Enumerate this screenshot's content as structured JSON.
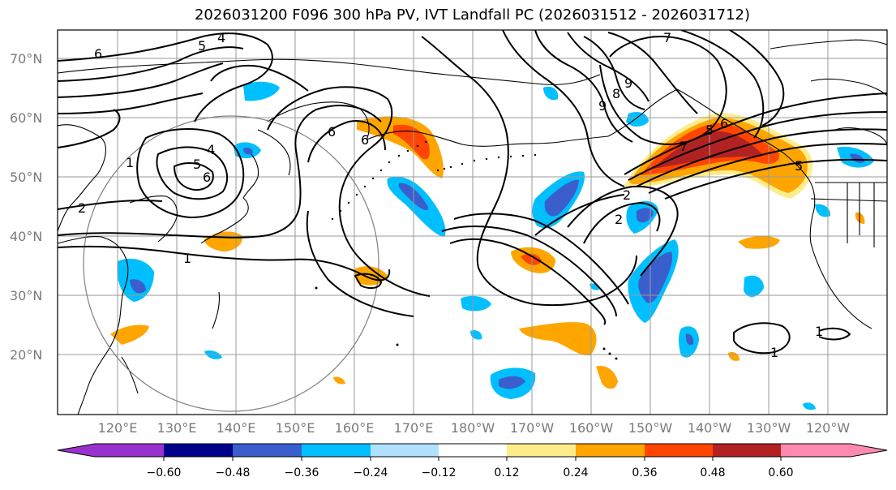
{
  "title": "2026031200 F096 300 hPa PV, IVT Landfall PC (2026031512 - 2026031712)",
  "map": {
    "lat_labels": [
      "70°N",
      "60°N",
      "50°N",
      "40°N",
      "30°N",
      "20°N"
    ],
    "lon_labels": [
      "120°E",
      "130°E",
      "140°E",
      "150°E",
      "160°E",
      "170°E",
      "180°W",
      "170°W",
      "160°W",
      "150°W",
      "140°W",
      "130°W",
      "120°W"
    ],
    "contour_labels": [
      "6",
      "5",
      "4",
      "5",
      "6",
      "7",
      "9",
      "8",
      "9",
      "6",
      "7",
      "6",
      "1",
      "1",
      "2",
      "2",
      "2",
      "1",
      "1",
      "4",
      "5",
      "6",
      "5"
    ],
    "colors": {
      "coastline": "#000000",
      "gridline": "#9a9a9a",
      "circle": "#808080",
      "contour": "#000000"
    }
  },
  "colorbar": {
    "tick_labels": [
      "−0.60",
      "−0.48",
      "−0.36",
      "−0.24",
      "−0.12",
      "0.12",
      "0.24",
      "0.36",
      "0.48",
      "0.60"
    ],
    "colors": [
      "#9932CC",
      "#00008B",
      "#3A5FCD",
      "#00BFFF",
      "#B0E2FF",
      "#FFFFFF",
      "#FFEC8B",
      "#FFA500",
      "#FF4500",
      "#B22222",
      "#FF89B0"
    ]
  }
}
